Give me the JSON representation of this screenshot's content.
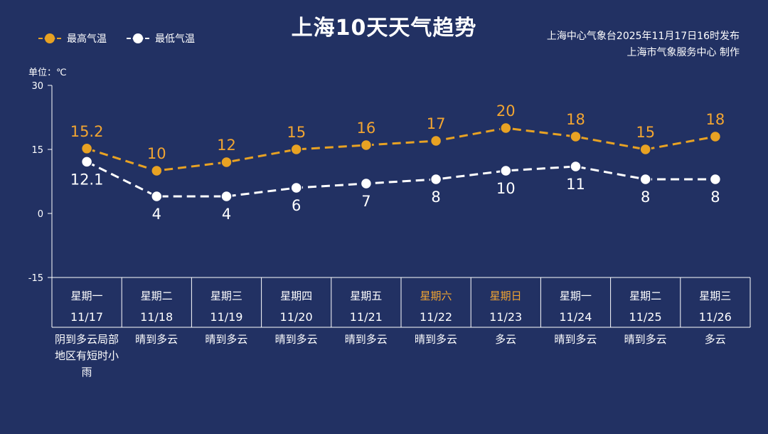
{
  "title": "上海10天天气趋势",
  "legend": {
    "high": "最高气温",
    "low": "最低气温"
  },
  "source": {
    "line1": "上海中心气象台2025年11月17日16时发布",
    "line2": "上海市气象服务中心  制作"
  },
  "unit_label": "单位：℃",
  "colors": {
    "background": "#223163",
    "high": "#e8a223",
    "high_label": "#f2a531",
    "low": "#ffffff"
  },
  "days": [
    {
      "weekday": "星期一",
      "date": "11/17",
      "weather": "阴到多云局部地区有短时小雨",
      "weekend": false
    },
    {
      "weekday": "星期二",
      "date": "11/18",
      "weather": "晴到多云",
      "weekend": false
    },
    {
      "weekday": "星期三",
      "date": "11/19",
      "weather": "晴到多云",
      "weekend": false
    },
    {
      "weekday": "星期四",
      "date": "11/20",
      "weather": "晴到多云",
      "weekend": false
    },
    {
      "weekday": "星期五",
      "date": "11/21",
      "weather": "晴到多云",
      "weekend": false
    },
    {
      "weekday": "星期六",
      "date": "11/22",
      "weather": "晴到多云",
      "weekend": true
    },
    {
      "weekday": "星期日",
      "date": "11/23",
      "weather": "多云",
      "weekend": true
    },
    {
      "weekday": "星期一",
      "date": "11/24",
      "weather": "晴到多云",
      "weekend": false
    },
    {
      "weekday": "星期二",
      "date": "11/25",
      "weather": "晴到多云",
      "weekend": false
    },
    {
      "weekday": "星期三",
      "date": "11/26",
      "weather": "多云",
      "weekend": false
    }
  ],
  "chart_data": {
    "type": "line",
    "title": "上海10天天气趋势",
    "categories": [
      "11/17",
      "11/18",
      "11/19",
      "11/20",
      "11/21",
      "11/22",
      "11/23",
      "11/24",
      "11/25",
      "11/26"
    ],
    "series": [
      {
        "name": "最高气温",
        "values": [
          15.2,
          10,
          12,
          15,
          16,
          17,
          20,
          18,
          15,
          18
        ],
        "labels": [
          "15.2",
          "10",
          "12",
          "15",
          "16",
          "17",
          "20",
          "18",
          "15",
          "18"
        ]
      },
      {
        "name": "最低气温",
        "values": [
          12.1,
          4,
          4,
          6,
          7,
          8,
          10,
          11,
          8,
          8
        ],
        "labels": [
          "12.1",
          "4",
          "4",
          "6",
          "7",
          "8",
          "10",
          "11",
          "8",
          "8"
        ]
      }
    ],
    "ylim": [
      -15,
      30
    ],
    "yticks": [
      30,
      15,
      0,
      -15
    ],
    "grid": false,
    "legend_position": "top-left"
  }
}
